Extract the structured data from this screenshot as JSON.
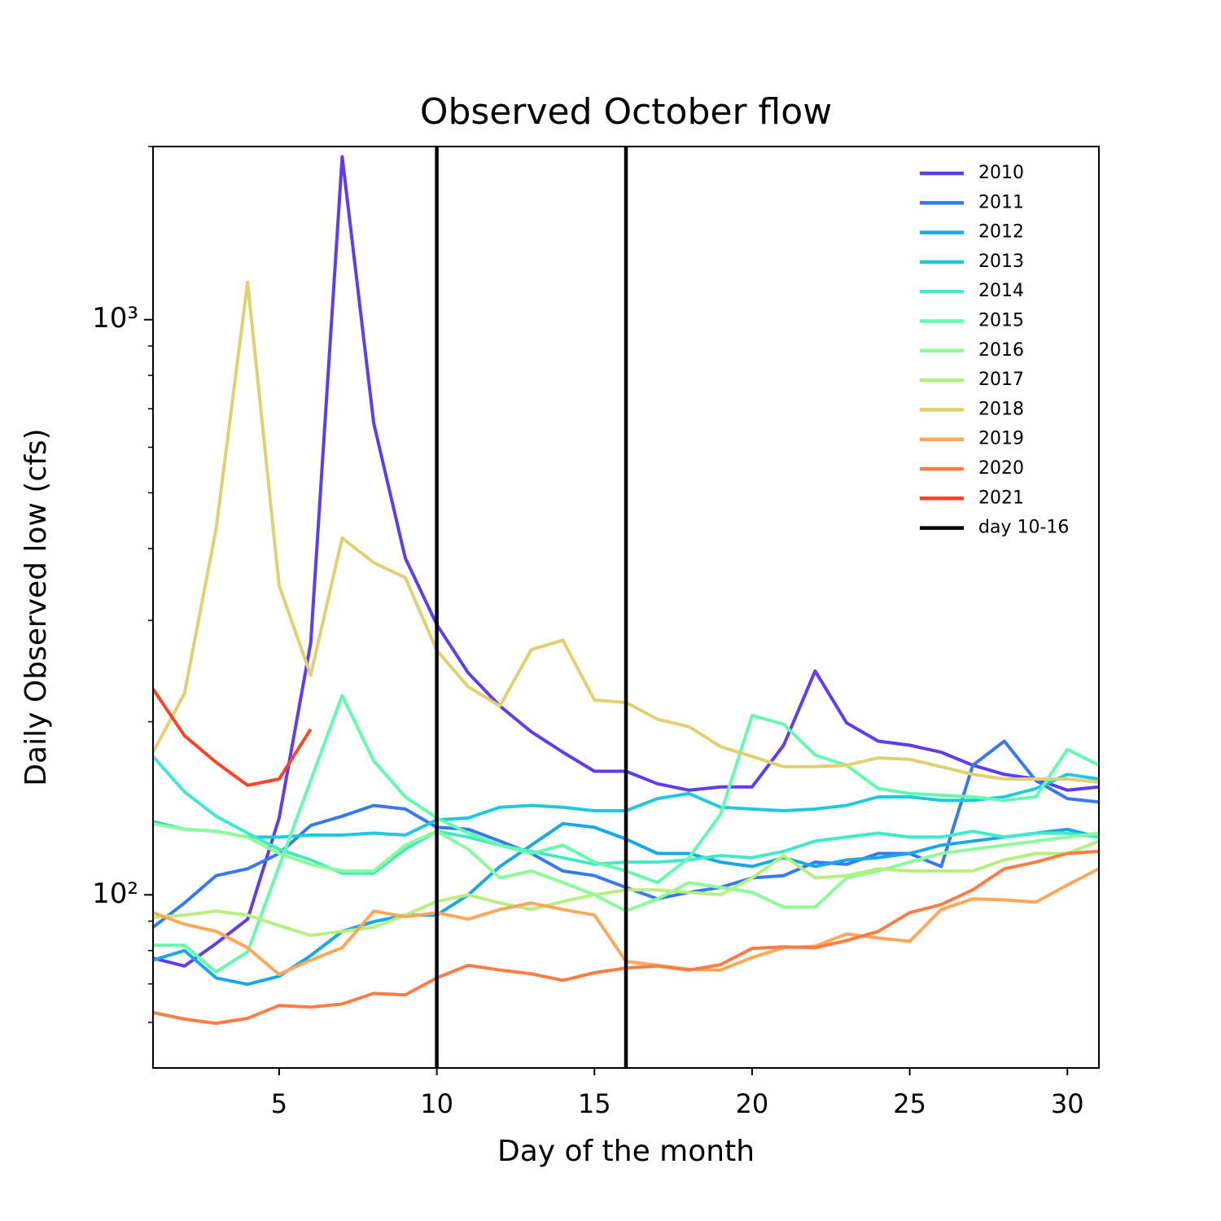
{
  "chart_data": {
    "type": "line",
    "title": "Observed October flow",
    "xlabel": "Day of the month",
    "ylabel": "Daily Observed low (cfs)",
    "x": [
      1,
      2,
      3,
      4,
      5,
      6,
      7,
      8,
      9,
      10,
      11,
      12,
      13,
      14,
      15,
      16,
      17,
      18,
      19,
      20,
      21,
      22,
      23,
      24,
      25,
      26,
      27,
      28,
      29,
      30,
      31
    ],
    "xlim": [
      1,
      31
    ],
    "xticks": [
      5,
      10,
      15,
      20,
      25,
      30
    ],
    "ylim": [
      50,
      2000
    ],
    "yscale": "log",
    "yticks": [
      {
        "value": 100,
        "label": "10²"
      },
      {
        "value": 1000,
        "label": "10³"
      }
    ],
    "yminorticks": [
      60,
      70,
      80,
      90,
      200,
      300,
      400,
      500,
      600,
      700,
      800,
      900,
      2000
    ],
    "legend": "upper right",
    "series": [
      {
        "name": "2010",
        "color": "#5e3cf4",
        "values": [
          77.6,
          75.2,
          82.3,
          90.7,
          136,
          274,
          1920,
          661,
          385,
          295,
          243,
          213,
          192,
          177,
          164,
          164,
          156,
          152,
          154,
          154,
          182,
          245,
          199,
          185,
          182,
          177,
          168,
          162,
          159,
          152,
          154
        ]
      },
      {
        "name": "2011",
        "color": "#3779f0",
        "values": [
          87.8,
          96.8,
          108,
          111,
          118,
          132,
          137,
          143,
          141,
          131,
          130,
          124,
          118,
          110,
          108,
          103,
          98.4,
          101,
          103,
          107,
          108,
          114,
          113,
          118,
          118,
          112,
          168,
          185,
          158,
          147,
          145
        ]
      },
      {
        "name": "2012",
        "color": "#17a8e9",
        "values": [
          77,
          80,
          71.7,
          69.9,
          72.2,
          78.4,
          86.4,
          89.8,
          92.2,
          92.2,
          100,
          112,
          122,
          133,
          131,
          125,
          118,
          118,
          114,
          112,
          116,
          112,
          115,
          116,
          118,
          122,
          124,
          126,
          128,
          130,
          126
        ]
      },
      {
        "name": "2013",
        "color": "#1fc9dd",
        "values": [
          134,
          130,
          129,
          126,
          126,
          127,
          127,
          128,
          127,
          135,
          136,
          142,
          143,
          142,
          140,
          140,
          147,
          150,
          142,
          141,
          140,
          141,
          143,
          148,
          148,
          146,
          146,
          148,
          153,
          162,
          159
        ]
      },
      {
        "name": "2014",
        "color": "#40e9c7",
        "values": [
          174,
          151,
          137,
          128,
          120,
          115,
          109,
          109,
          120,
          129,
          126,
          122,
          119,
          116,
          113,
          114,
          114,
          115,
          117,
          116,
          119,
          124,
          126,
          128,
          126,
          126,
          129,
          126,
          128,
          128,
          126
        ]
      },
      {
        "name": "2015",
        "color": "#63fbad",
        "values": [
          81.7,
          81.7,
          73.4,
          79.6,
          112,
          158,
          222,
          171,
          148,
          136,
          128,
          122,
          118,
          122,
          114,
          110,
          105,
          116,
          138,
          205,
          198,
          175,
          168,
          153,
          150,
          149,
          148,
          146,
          148,
          179,
          168
        ]
      },
      {
        "name": "2016",
        "color": "#8afc98",
        "values": [
          133,
          130,
          129,
          126,
          118,
          113,
          110,
          110,
          122,
          129,
          120,
          107,
          110,
          105,
          100,
          93.7,
          98.4,
          105,
          103,
          101,
          95.2,
          95.2,
          107,
          110,
          114,
          118,
          120,
          122,
          124,
          126,
          128
        ]
      },
      {
        "name": "2017",
        "color": "#b5f07f",
        "values": [
          91.3,
          92.2,
          93.7,
          92.2,
          88.4,
          85,
          86.4,
          87.8,
          92.2,
          97.4,
          100,
          96.8,
          94.3,
          97.4,
          100,
          102,
          102,
          101,
          100,
          107,
          117,
          107,
          108,
          111,
          110,
          110,
          110,
          115,
          118,
          118,
          124
        ]
      },
      {
        "name": "2018",
        "color": "#e0d070",
        "values": [
          177,
          224,
          433,
          1162,
          345,
          241,
          417,
          378,
          356,
          266,
          230,
          213,
          267,
          277,
          218,
          216,
          202,
          196,
          181,
          174,
          167,
          167,
          168,
          173,
          172,
          167,
          162,
          159,
          159,
          159,
          157
        ]
      },
      {
        "name": "2019",
        "color": "#ffa85a",
        "values": [
          93.1,
          88.9,
          86.4,
          80.9,
          72.7,
          77,
          80.9,
          93.7,
          91.6,
          93.1,
          90.7,
          94.3,
          96.8,
          94.3,
          92.2,
          76.6,
          75.4,
          74.2,
          74,
          77.8,
          80.9,
          81.4,
          85.5,
          84.1,
          83,
          94.3,
          98.4,
          98,
          97.1,
          104,
          111
        ]
      },
      {
        "name": "2020",
        "color": "#ff7c44",
        "values": [
          62.4,
          60.8,
          59.8,
          61,
          64.2,
          63.8,
          64.6,
          67.4,
          67,
          71.7,
          75.4,
          74,
          72.9,
          71,
          73.2,
          74.6,
          75.2,
          74,
          75.6,
          80.7,
          81.2,
          80.9,
          83.3,
          86.4,
          93.1,
          96.2,
          102,
          111,
          114,
          118,
          119
        ]
      },
      {
        "name": "2021",
        "color": "#ff4326",
        "values": [
          228,
          189,
          170,
          155,
          159,
          194,
          null,
          null,
          null,
          null,
          null,
          null,
          null,
          null,
          null,
          null,
          null,
          null,
          null,
          null,
          null,
          null,
          null,
          null,
          null,
          null,
          null,
          null,
          null,
          null,
          null
        ]
      }
    ],
    "vlines": {
      "name": "day 10-16",
      "color": "#000000",
      "x": [
        10,
        16
      ]
    }
  }
}
